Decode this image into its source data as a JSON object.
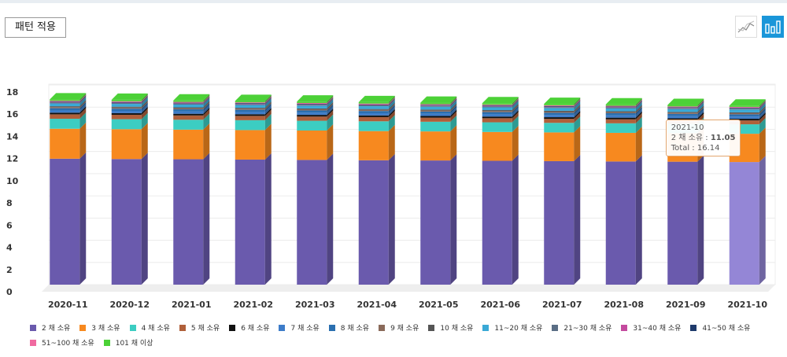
{
  "button": "패턴 적용",
  "chart_data": {
    "type": "stacked-bar-3d",
    "categories": [
      "2020-11",
      "2020-12",
      "2021-01",
      "2021-02",
      "2021-03",
      "2021-04",
      "2021-05",
      "2021-06",
      "2021-07",
      "2021-08",
      "2021-09",
      "2021-10"
    ],
    "ylim": [
      0,
      18
    ],
    "yticks": [
      0,
      2,
      4,
      6,
      8,
      10,
      12,
      14,
      16,
      18
    ],
    "grid": true,
    "series": [
      {
        "name": "2 채 소유",
        "color": "#6a5aad",
        "values": [
          11.35,
          11.32,
          11.3,
          11.27,
          11.24,
          11.21,
          11.19,
          11.16,
          11.13,
          11.1,
          11.08,
          11.05
        ]
      },
      {
        "name": "3 채 소유",
        "color": "#f7891f",
        "values": [
          2.7,
          2.69,
          2.67,
          2.66,
          2.65,
          2.63,
          2.62,
          2.6,
          2.59,
          2.58,
          2.56,
          2.55
        ]
      },
      {
        "name": "4 채 소유",
        "color": "#3ccdc2",
        "values": [
          0.9,
          0.9,
          0.89,
          0.89,
          0.88,
          0.88,
          0.87,
          0.87,
          0.86,
          0.86,
          0.85,
          0.85
        ]
      },
      {
        "name": "5 채 소유",
        "color": "#b0603a",
        "values": [
          0.4,
          0.4,
          0.39,
          0.39,
          0.38,
          0.38,
          0.37,
          0.37,
          0.36,
          0.36,
          0.35,
          0.35
        ]
      },
      {
        "name": "6 채 소유",
        "color": "#111111",
        "values": [
          0.15,
          0.15,
          0.15,
          0.15,
          0.15,
          0.15,
          0.15,
          0.15,
          0.15,
          0.15,
          0.15,
          0.15
        ]
      },
      {
        "name": "7 채 소유",
        "color": "#3d7cc9",
        "values": [
          0.2,
          0.2,
          0.2,
          0.2,
          0.2,
          0.2,
          0.2,
          0.2,
          0.2,
          0.2,
          0.2,
          0.2
        ]
      },
      {
        "name": "8 채 소유",
        "color": "#2a6fb0",
        "values": [
          0.2,
          0.2,
          0.2,
          0.2,
          0.2,
          0.2,
          0.2,
          0.2,
          0.2,
          0.2,
          0.2,
          0.2
        ]
      },
      {
        "name": "9 채 소유",
        "color": "#8a6a5a",
        "values": [
          0.1,
          0.1,
          0.1,
          0.1,
          0.1,
          0.1,
          0.1,
          0.1,
          0.1,
          0.1,
          0.1,
          0.1
        ]
      },
      {
        "name": "10 채 소유",
        "color": "#555555",
        "values": [
          0.08,
          0.08,
          0.08,
          0.08,
          0.08,
          0.08,
          0.08,
          0.08,
          0.08,
          0.08,
          0.08,
          0.08
        ]
      },
      {
        "name": "11~20 채 소유",
        "color": "#3aa9d6",
        "values": [
          0.25,
          0.25,
          0.25,
          0.25,
          0.25,
          0.25,
          0.25,
          0.25,
          0.25,
          0.25,
          0.25,
          0.25
        ]
      },
      {
        "name": "21~30 채 소유",
        "color": "#5a6e85",
        "values": [
          0.08,
          0.08,
          0.08,
          0.08,
          0.08,
          0.08,
          0.08,
          0.08,
          0.08,
          0.08,
          0.08,
          0.08
        ]
      },
      {
        "name": "31~40 채 소유",
        "color": "#c44a9e",
        "values": [
          0.03,
          0.03,
          0.03,
          0.03,
          0.03,
          0.03,
          0.03,
          0.03,
          0.03,
          0.03,
          0.03,
          0.03
        ]
      },
      {
        "name": "41~50 채 소유",
        "color": "#1e3a6b",
        "values": [
          0.06,
          0.06,
          0.06,
          0.06,
          0.06,
          0.06,
          0.06,
          0.06,
          0.06,
          0.06,
          0.06,
          0.06
        ]
      },
      {
        "name": "51~100 채 소유",
        "color": "#f06aa0",
        "values": [
          0.07,
          0.07,
          0.07,
          0.07,
          0.07,
          0.07,
          0.07,
          0.07,
          0.07,
          0.07,
          0.07,
          0.07
        ]
      },
      {
        "name": "101 채 이상",
        "color": "#4cd137",
        "values": [
          0.13,
          0.13,
          0.13,
          0.13,
          0.13,
          0.13,
          0.13,
          0.13,
          0.13,
          0.13,
          0.13,
          0.12
        ]
      }
    ],
    "tooltip": {
      "separator": ":",
      "total_label": "Total",
      "total": 16.14
    }
  }
}
